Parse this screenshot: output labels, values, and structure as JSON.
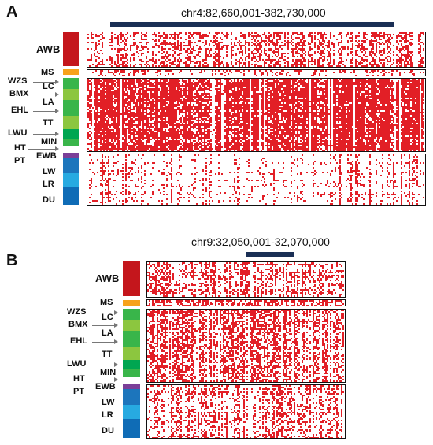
{
  "panels": [
    {
      "letter": "A",
      "region": "chr4:82,660,001-382,730,000",
      "groups": [
        "AWB",
        "MS",
        "LC",
        "LA",
        "TT",
        "MIN",
        "EWB",
        "LW",
        "LR",
        "DU"
      ],
      "outer_labels": [
        "WZS",
        "BMX",
        "EHL",
        "LWU",
        "HT",
        "PT"
      ]
    },
    {
      "letter": "B",
      "region": "chr9:32,050,001-32,070,000",
      "groups": [
        "AWB",
        "MS",
        "LC",
        "LA",
        "TT",
        "MIN",
        "EWB",
        "LW",
        "LR",
        "DU"
      ],
      "outer_labels": [
        "WZS",
        "BMX",
        "EHL",
        "LWU",
        "HT",
        "PT"
      ]
    }
  ],
  "colors": {
    "awb": "#c4161c",
    "ms": "#f7a21b",
    "green_light": "#8cc63f",
    "green_mid": "#39b54a",
    "green_dark": "#00a651",
    "ewb": "#7b3f98",
    "lw": "#27aae1",
    "lr": "#1c75bc",
    "du": "#0f6cb6",
    "heat": "#e21f26",
    "bar": "#1a2f55"
  }
}
